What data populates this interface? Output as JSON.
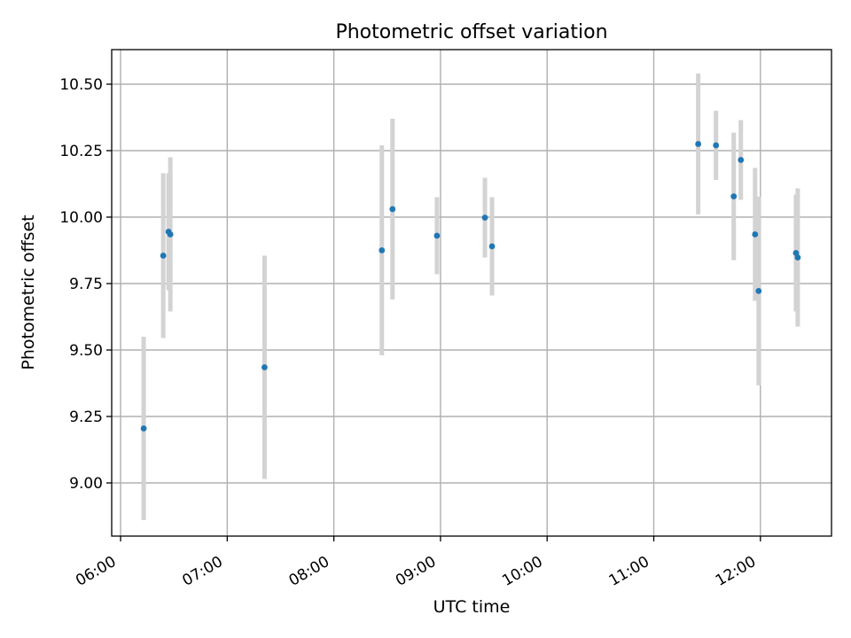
{
  "chart_data": {
    "type": "scatter",
    "title": "Photometric offset variation",
    "xlabel": "UTC time",
    "ylabel": "Photometric offset",
    "x_axis": "time",
    "xlim": [
      "05:55",
      "12:40"
    ],
    "ylim": [
      8.8,
      10.63
    ],
    "x_ticks": [
      "06:00",
      "07:00",
      "08:00",
      "09:00",
      "10:00",
      "11:00",
      "12:00"
    ],
    "y_ticks": [
      9.0,
      9.25,
      9.5,
      9.75,
      10.0,
      10.25,
      10.5
    ],
    "y_tick_labels": [
      "9.00",
      "9.25",
      "9.50",
      "9.75",
      "10.00",
      "10.25",
      "10.50"
    ],
    "grid": true,
    "legend": "none",
    "colors": {
      "points": "#1f77b4",
      "error_bars": "#d3d3d3"
    },
    "points": [
      {
        "x": "06:13",
        "y": 9.205,
        "err": 0.345
      },
      {
        "x": "06:24",
        "y": 9.855,
        "err": 0.31
      },
      {
        "x": "06:27",
        "y": 9.945,
        "err": 0.22
      },
      {
        "x": "06:28",
        "y": 9.935,
        "err": 0.29
      },
      {
        "x": "07:21",
        "y": 9.435,
        "err": 0.42
      },
      {
        "x": "08:27",
        "y": 9.875,
        "err": 0.395
      },
      {
        "x": "08:33",
        "y": 10.03,
        "err": 0.34
      },
      {
        "x": "08:58",
        "y": 9.93,
        "err": 0.145
      },
      {
        "x": "09:25",
        "y": 9.998,
        "err": 0.15
      },
      {
        "x": "09:29",
        "y": 9.89,
        "err": 0.185
      },
      {
        "x": "11:25",
        "y": 10.275,
        "err": 0.265
      },
      {
        "x": "11:35",
        "y": 10.27,
        "err": 0.13
      },
      {
        "x": "11:45",
        "y": 10.078,
        "err": 0.24
      },
      {
        "x": "11:49",
        "y": 10.215,
        "err": 0.15
      },
      {
        "x": "11:57",
        "y": 9.935,
        "err": 0.25
      },
      {
        "x": "11:59",
        "y": 9.722,
        "err": 0.355
      },
      {
        "x": "12:20",
        "y": 9.865,
        "err": 0.22
      },
      {
        "x": "12:21",
        "y": 9.848,
        "err": 0.26
      }
    ]
  }
}
